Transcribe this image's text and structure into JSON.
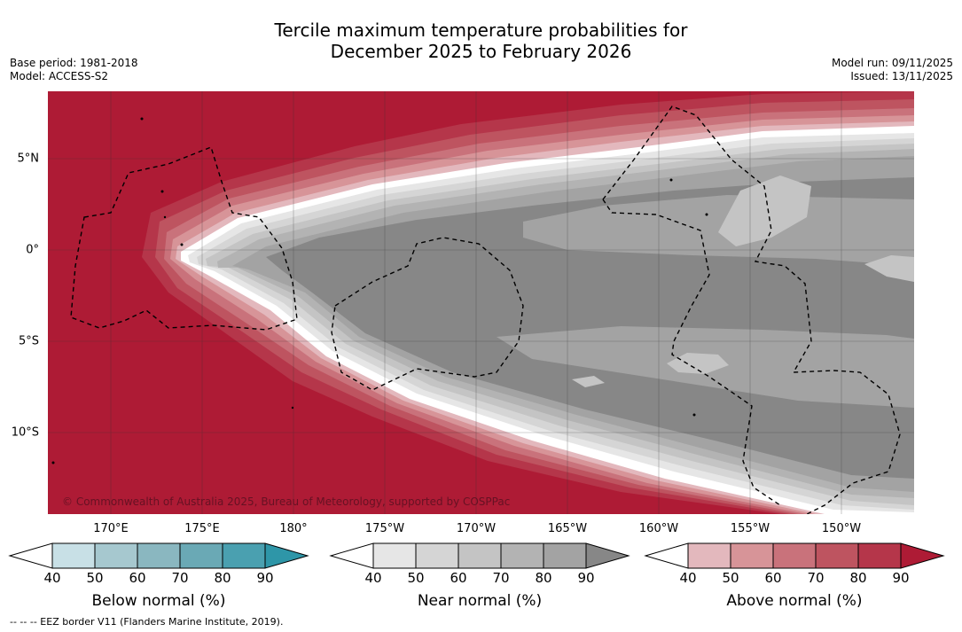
{
  "title": {
    "line1": "Tercile maximum temperature probabilities for",
    "line2": "December 2025 to February 2026"
  },
  "meta": {
    "base_period": "Base period: 1981-2018",
    "model": "Model: ACCESS-S2",
    "model_run": "Model run: 09/11/2025",
    "issued": "Issued: 13/11/2025"
  },
  "map": {
    "copyright": "© Commonwealth of Australia 2025, Bureau of Meteorology, supported by COSPPac",
    "lon_labels": [
      "170°E",
      "175°E",
      "180°",
      "175°W",
      "170°W",
      "165°W",
      "160°W",
      "155°W",
      "150°W"
    ],
    "lat_labels": [
      "5°N",
      "0°",
      "5°S",
      "10°S"
    ]
  },
  "colorbars": [
    {
      "title": "Below normal (%)",
      "ticks": [
        "40",
        "50",
        "60",
        "70",
        "80",
        "90"
      ],
      "colors": [
        "#ffffff",
        "#c8e0e6",
        "#a6c8cf",
        "#8ab7c0",
        "#6aa9b5",
        "#4aa0b0",
        "#2e96a8"
      ]
    },
    {
      "title": "Near normal (%)",
      "ticks": [
        "40",
        "50",
        "60",
        "70",
        "80",
        "90"
      ],
      "colors": [
        "#ffffff",
        "#e6e6e6",
        "#d5d5d5",
        "#c4c4c4",
        "#b3b3b3",
        "#a3a3a3",
        "#878787"
      ]
    },
    {
      "title": "Above normal (%)",
      "ticks": [
        "40",
        "50",
        "60",
        "70",
        "80",
        "90"
      ],
      "colors": [
        "#ffffff",
        "#e3b8bd",
        "#d79498",
        "#c9727b",
        "#be5460",
        "#b5364a",
        "#ae1b35"
      ]
    }
  ],
  "footnote": "--  --  -- EEZ border V11 (Flanders Marine Institute, 2019)."
}
